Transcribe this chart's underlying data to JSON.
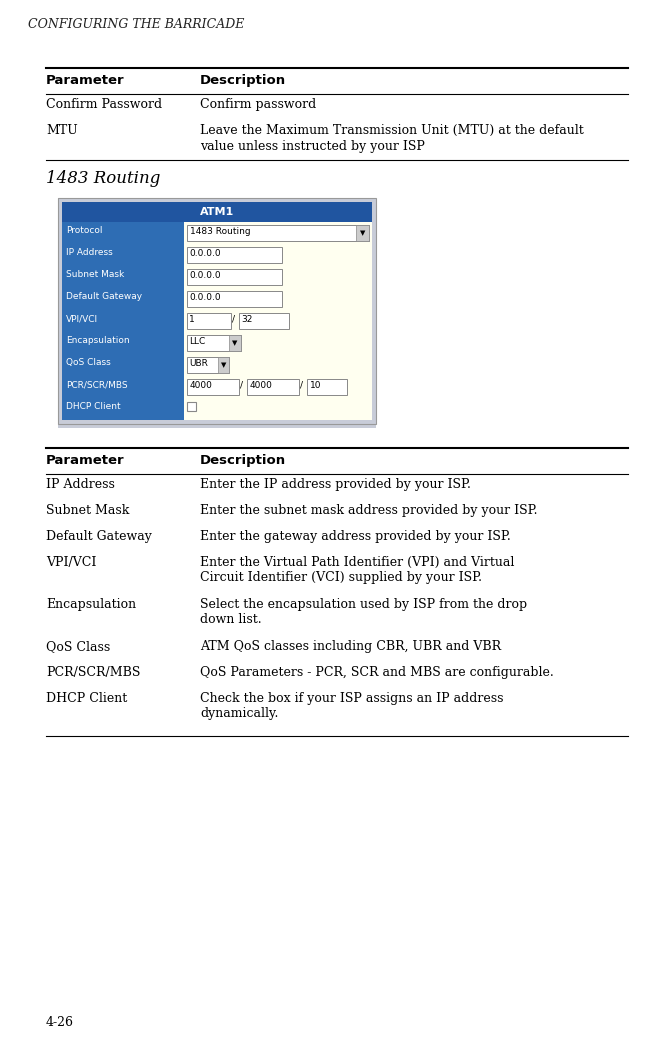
{
  "page_title": "CONFIGURING THE BARRICADE",
  "page_number": "4-26",
  "background_color": "#ffffff",
  "top_table": {
    "header": [
      "Parameter",
      "Description"
    ],
    "rows": [
      [
        "Confirm Password",
        "Confirm password"
      ],
      [
        "MTU",
        "Leave the Maximum Transmission Unit (MTU) at the default\nvalue unless instructed by your ISP"
      ]
    ]
  },
  "section_title": "1483 Routing",
  "ui_image": {
    "outer_bg": "#c8ccd8",
    "header_bg": "#2055a0",
    "header_text": "ATM1",
    "header_text_color": "#ffffff",
    "row_label_bg": "#2e6db4",
    "row_label_color": "#ffffff",
    "row_value_bg": "#fffff0",
    "field_bg": "#ffffff",
    "rows": [
      {
        "label": "Protocol",
        "value": "1483 Routing",
        "type": "dropdown"
      },
      {
        "label": "IP Address",
        "value": "0.0.0.0",
        "type": "text"
      },
      {
        "label": "Subnet Mask",
        "value": "0.0.0.0",
        "type": "text"
      },
      {
        "label": "Default Gateway",
        "value": "0.0.0.0",
        "type": "text"
      },
      {
        "label": "VPI/VCI",
        "value": "1|32",
        "type": "split"
      },
      {
        "label": "Encapsulation",
        "value": "LLC",
        "type": "dropdown_small"
      },
      {
        "label": "QoS Class",
        "value": "UBR",
        "type": "dropdown_xsmall"
      },
      {
        "label": "PCR/SCR/MBS",
        "value": "4000|4000|10",
        "type": "triple"
      },
      {
        "label": "DHCP Client",
        "value": "",
        "type": "checkbox"
      }
    ]
  },
  "bottom_table": {
    "header": [
      "Parameter",
      "Description"
    ],
    "rows": [
      [
        "IP Address",
        "Enter the IP address provided by your ISP."
      ],
      [
        "Subnet Mask",
        "Enter the subnet mask address provided by your ISP."
      ],
      [
        "Default Gateway",
        "Enter the gateway address provided by your ISP."
      ],
      [
        "VPI/VCI",
        "Enter the Virtual Path Identifier (VPI) and Virtual\nCircuit Identifier (VCI) supplied by your ISP."
      ],
      [
        "Encapsulation",
        "Select the encapsulation used by ISP from the drop\ndown list."
      ],
      [
        "QoS Class",
        "ATM QoS classes including CBR, UBR and VBR"
      ],
      [
        "PCR/SCR/MBS",
        "QoS Parameters - PCR, SCR and MBS are configurable."
      ],
      [
        "DHCP Client",
        "Check the box if your ISP assigns an IP address\ndynamically."
      ]
    ]
  }
}
